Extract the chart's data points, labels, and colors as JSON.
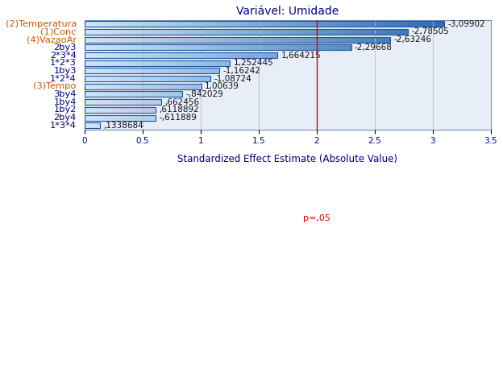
{
  "title": "Variável: Umidade",
  "xlabel": "Standardized Effect Estimate (Absolute Value)",
  "p_label": "p=,05",
  "p_value_line": 2.0,
  "labels": [
    "(2)Temperatura",
    "(1)Conc",
    "(4)VazaoAr",
    "2by3",
    "2*3*4",
    "1*2*3",
    "1by3",
    "1*2*4",
    "(3)Tempo",
    "3by4",
    "1by4",
    "1by2",
    "2by4",
    "1*3*4"
  ],
  "values": [
    3.09902,
    2.78505,
    2.63246,
    2.29668,
    1.664215,
    1.252445,
    1.16242,
    1.08724,
    1.00639,
    0.842029,
    0.662456,
    0.6118892,
    0.611889,
    0.1338684
  ],
  "value_labels": [
    "-3,09902",
    "-2,78505",
    "-2,63246",
    "-2,29668",
    "1,664215",
    "1,252445",
    "-1,16242",
    "-1,08724",
    "1,00639",
    "-,842029",
    ",662456",
    ",6118892",
    "-,611889",
    ",1338684"
  ],
  "parenthetical_labels": [
    "(2)Temperatura",
    "(1)Conc",
    "(4)VazaoAr",
    "(3)Tempo"
  ],
  "bar_color_light": "#ccdff5",
  "bar_color_mid": "#7ab3e0",
  "bar_color_dark": "#2e6db4",
  "bar_border_color": "#2255a0",
  "bg_color": "#e8eef8",
  "grid_color": "#b0bcd0",
  "p_line_color": "#dd0000",
  "title_color": "#000080",
  "label_color_orange": "#cc5500",
  "label_color_blue": "#000080",
  "xlabel_color": "#000080",
  "xlim_max": 3.5
}
